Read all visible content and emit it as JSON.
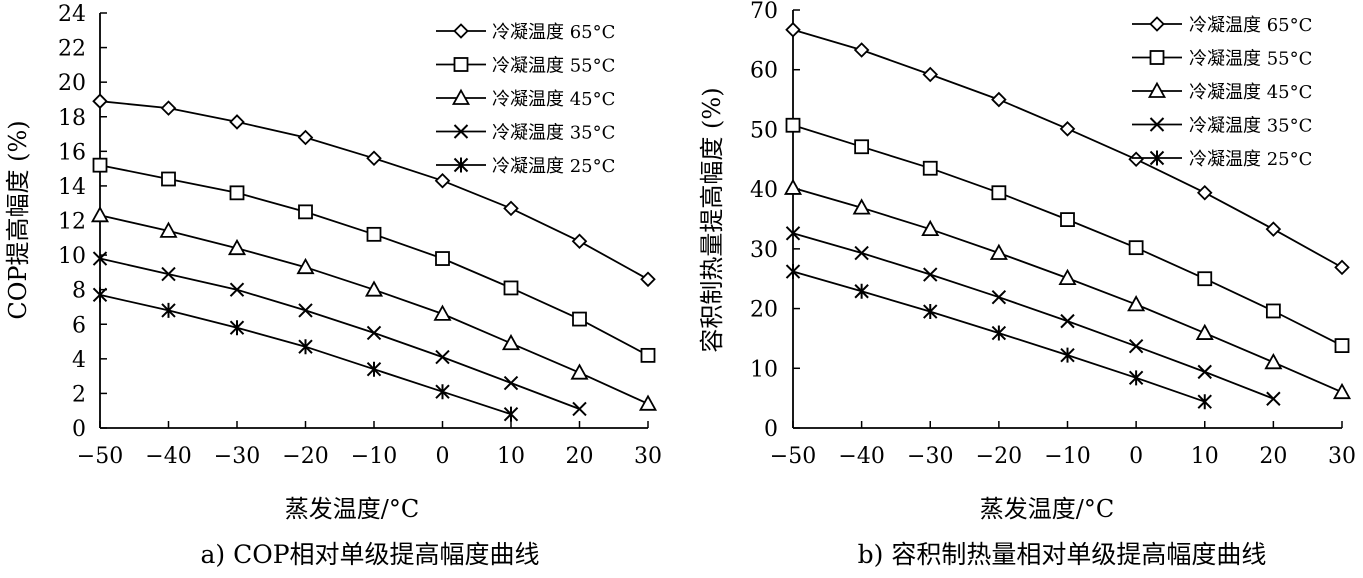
{
  "chart_data": [
    {
      "type": "line",
      "caption": "a) COP相对单级提高幅度曲线",
      "xlabel": "蒸发温度/°C",
      "ylabel": "COP提高幅度 (%)",
      "xlim": [
        -50,
        30
      ],
      "ylim": [
        0,
        24
      ],
      "xticks": [
        -50,
        -40,
        -30,
        -20,
        -10,
        0,
        10,
        20,
        30
      ],
      "yticks": [
        0,
        2,
        4,
        6,
        8,
        10,
        12,
        14,
        16,
        18,
        20,
        22,
        24
      ],
      "xtick_labels": [
        "−50",
        "−40",
        "−30",
        "−20",
        "−10",
        "0",
        "10",
        "20",
        "30"
      ],
      "ytick_labels": [
        "0",
        "2",
        "4",
        "6",
        "8",
        "10",
        "12",
        "14",
        "16",
        "18",
        "20",
        "22",
        "24"
      ],
      "legend_position": "top-right",
      "grid": false,
      "series": [
        {
          "name": "冷凝温度 65°C",
          "marker": "diamond",
          "x": [
            -50,
            -40,
            -30,
            -20,
            -10,
            0,
            10,
            20,
            30
          ],
          "y": [
            18.9,
            18.5,
            17.7,
            16.8,
            15.6,
            14.3,
            12.7,
            10.8,
            8.6
          ]
        },
        {
          "name": "冷凝温度 55°C",
          "marker": "square",
          "x": [
            -50,
            -40,
            -30,
            -20,
            -10,
            0,
            10,
            20,
            30
          ],
          "y": [
            15.2,
            14.4,
            13.6,
            12.5,
            11.2,
            9.8,
            8.1,
            6.3,
            4.2
          ]
        },
        {
          "name": "冷凝温度 45°C",
          "marker": "triangle",
          "x": [
            -50,
            -40,
            -30,
            -20,
            -10,
            0,
            10,
            20,
            30
          ],
          "y": [
            12.3,
            11.4,
            10.4,
            9.3,
            8.0,
            6.6,
            4.9,
            3.2,
            1.4
          ]
        },
        {
          "name": "冷凝温度 35°C",
          "marker": "x",
          "x": [
            -50,
            -40,
            -30,
            -20,
            -10,
            0,
            10,
            20
          ],
          "y": [
            9.8,
            8.9,
            8.0,
            6.8,
            5.5,
            4.1,
            2.6,
            1.1
          ]
        },
        {
          "name": "冷凝温度 25°C",
          "marker": "star",
          "x": [
            -50,
            -40,
            -30,
            -20,
            -10,
            0,
            10
          ],
          "y": [
            7.7,
            6.8,
            5.8,
            4.7,
            3.4,
            2.1,
            0.8
          ]
        }
      ]
    },
    {
      "type": "line",
      "caption": "b) 容积制热量相对单级提高幅度曲线",
      "xlabel": "蒸发温度/°C",
      "ylabel": "容积制热量提高幅度 (%)",
      "xlim": [
        -50,
        30
      ],
      "ylim": [
        0,
        70
      ],
      "xticks": [
        -50,
        -40,
        -30,
        -20,
        -10,
        0,
        10,
        20,
        30
      ],
      "yticks": [
        0,
        10,
        20,
        30,
        40,
        50,
        60,
        70
      ],
      "xtick_labels": [
        "−50",
        "−40",
        "−30",
        "−20",
        "−10",
        "0",
        "10",
        "20",
        "30"
      ],
      "ytick_labels": [
        "0",
        "10",
        "20",
        "30",
        "40",
        "50",
        "60",
        "70"
      ],
      "legend_position": "top-right",
      "grid": false,
      "series": [
        {
          "name": "冷凝温度 65°C",
          "marker": "diamond",
          "x": [
            -50,
            -40,
            -30,
            -20,
            -10,
            0,
            10,
            20,
            30
          ],
          "y": [
            66.7,
            63.3,
            59.2,
            55.0,
            50.1,
            45.0,
            39.4,
            33.3,
            26.9
          ]
        },
        {
          "name": "冷凝温度 55°C",
          "marker": "square",
          "x": [
            -50,
            -40,
            -30,
            -20,
            -10,
            0,
            10,
            20,
            30
          ],
          "y": [
            50.7,
            47.1,
            43.5,
            39.4,
            34.9,
            30.2,
            25.0,
            19.6,
            13.8
          ]
        },
        {
          "name": "冷凝温度 45°C",
          "marker": "triangle",
          "x": [
            -50,
            -40,
            -30,
            -20,
            -10,
            0,
            10,
            20,
            30
          ],
          "y": [
            40.2,
            36.9,
            33.3,
            29.3,
            25.1,
            20.7,
            15.9,
            11.0,
            6.0
          ]
        },
        {
          "name": "冷凝温度 35°C",
          "marker": "x",
          "x": [
            -50,
            -40,
            -30,
            -20,
            -10,
            0,
            10,
            20
          ],
          "y": [
            32.6,
            29.3,
            25.7,
            21.9,
            17.9,
            13.7,
            9.4,
            4.9
          ]
        },
        {
          "name": "冷凝温度 25°C",
          "marker": "star",
          "x": [
            -50,
            -40,
            -30,
            -20,
            -10,
            0,
            10
          ],
          "y": [
            26.2,
            22.9,
            19.5,
            15.9,
            12.2,
            8.4,
            4.4
          ]
        }
      ]
    }
  ]
}
